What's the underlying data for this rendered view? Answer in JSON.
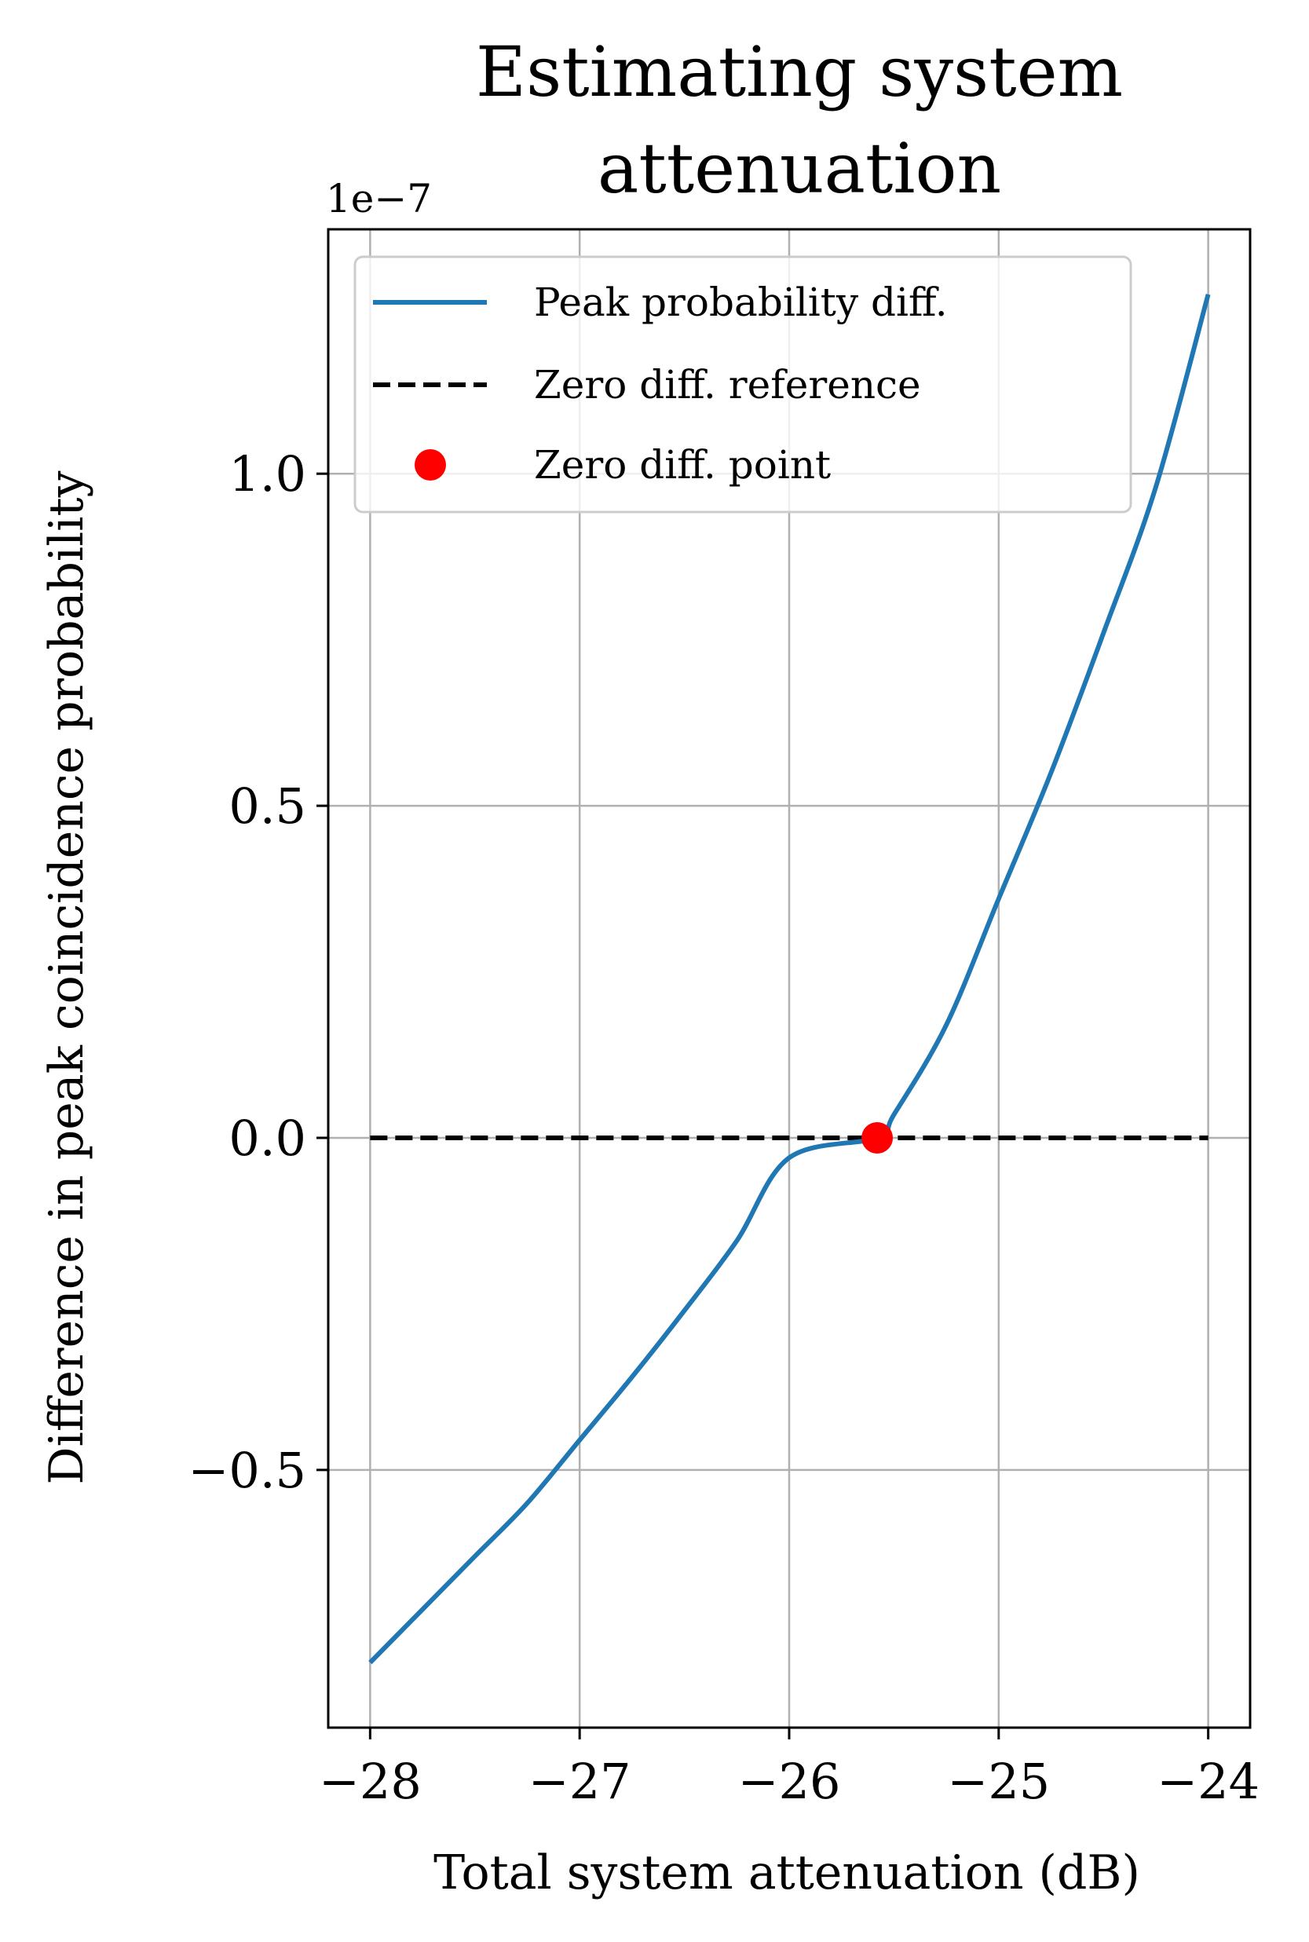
{
  "chart_data": {
    "type": "line",
    "title_lines": [
      "Estimating system",
      "attenuation"
    ],
    "xlabel": "Total system attenuation (dB)",
    "ylabel": "Difference in peak coincidence probability",
    "y_offset_text": "1e−7",
    "x_ticks": [
      -28,
      -27,
      -26,
      -25,
      -24
    ],
    "x_tick_labels": [
      "−28",
      "−27",
      "−26",
      "−25",
      "−24"
    ],
    "y_ticks": [
      -0.5,
      0.0,
      0.5,
      1.0
    ],
    "y_tick_labels": [
      "−0.5",
      "0.0",
      "0.5",
      "1.0"
    ],
    "xlim": [
      -28.2,
      -23.8
    ],
    "ylim": [
      -0.888,
      1.368
    ],
    "grid": true,
    "legend_position": "top",
    "series": [
      {
        "name": "Peak probability diff.",
        "style": "solid",
        "color": "#1f77b4",
        "x": [
          -28.0,
          -27.75,
          -27.5,
          -27.25,
          -27.0,
          -26.75,
          -26.5,
          -26.25,
          -26.0,
          -25.75,
          -25.6,
          -25.5,
          -25.25,
          -25.0,
          -24.75,
          -24.5,
          -24.25,
          -24.0
        ],
        "y": [
          -0.79,
          -0.71,
          -0.63,
          -0.55,
          -0.455,
          -0.36,
          -0.26,
          -0.155,
          -0.03,
          0.1,
          0.0,
          0.035,
          0.17,
          0.36,
          0.55,
          0.76,
          0.98,
          1.27
        ]
      },
      {
        "name": "Zero diff. reference",
        "style": "dashed",
        "color": "#000000",
        "x": [
          -28.0,
          -24.0
        ],
        "y": [
          0.0,
          0.0
        ]
      },
      {
        "name": "Zero diff. point",
        "style": "marker",
        "color": "#ff0000",
        "x": [
          -25.58
        ],
        "y": [
          0.0
        ]
      }
    ]
  }
}
